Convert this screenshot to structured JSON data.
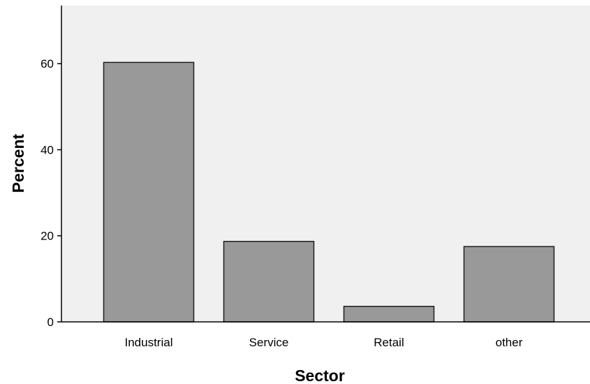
{
  "chart_data": {
    "type": "bar",
    "title": "",
    "xlabel": "Sector",
    "ylabel": "Percent",
    "categories": [
      "Industrial",
      "Service",
      "Retail",
      "other"
    ],
    "values": [
      60.3,
      18.7,
      3.6,
      17.5
    ],
    "ylim": [
      0,
      73.5
    ],
    "yticks": [
      0,
      20,
      40,
      60
    ],
    "ytick_labels": [
      "0",
      "20",
      "40",
      "60"
    ],
    "grid": false,
    "legend": "none",
    "colors": {
      "plot_background": "#f0f0f0",
      "bar_fill": "#999999",
      "bar_stroke": "#1e1e1e",
      "axis": "#000000"
    }
  }
}
